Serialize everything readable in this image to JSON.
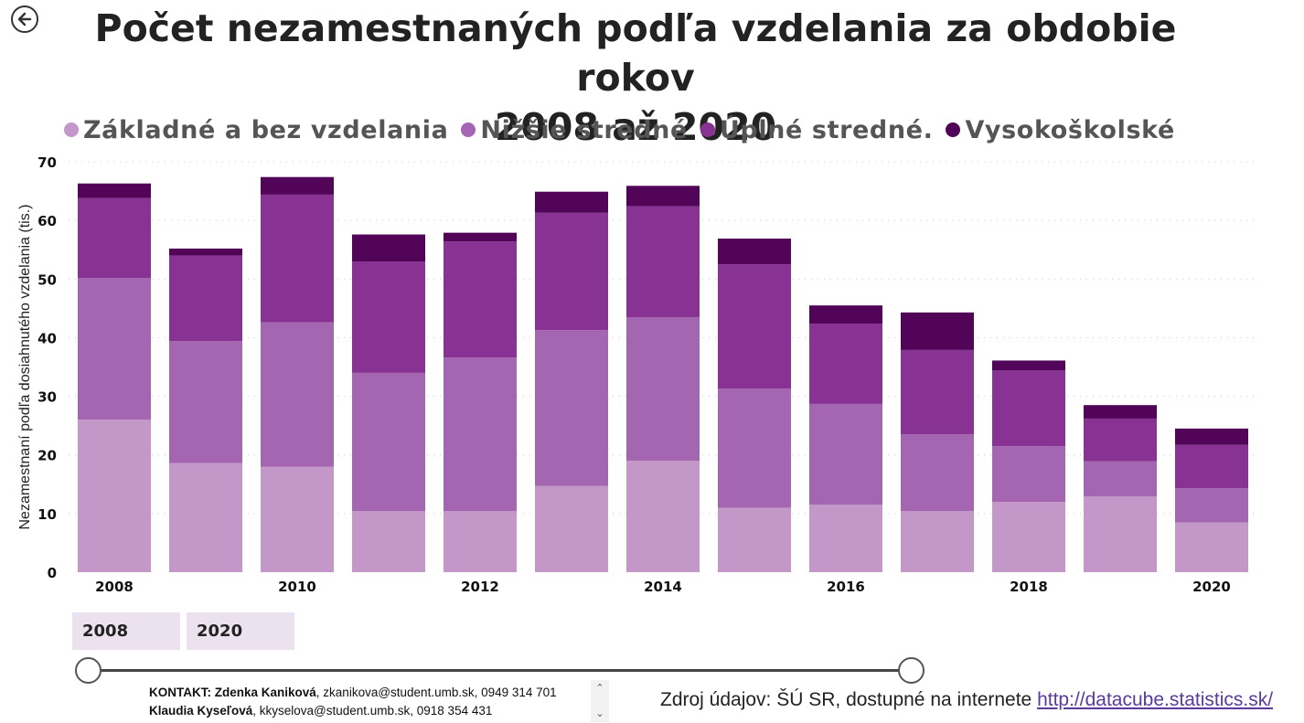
{
  "header": {
    "title_line1": "Počet nezamestnaných podľa vzdelania za obdobie rokov",
    "title_line2": "2008 až 2020",
    "back_icon": "back-arrow-icon"
  },
  "chart_data": {
    "type": "bar",
    "stacked": true,
    "categories": [
      "2008",
      "2009",
      "2010",
      "2011",
      "2012",
      "2013",
      "2014",
      "2015",
      "2016",
      "2017",
      "2018",
      "2019",
      "2020"
    ],
    "tick_labels": [
      "2008",
      "",
      "2010",
      "",
      "2012",
      "",
      "2014",
      "",
      "2016",
      "",
      "2018",
      "",
      "2020"
    ],
    "series": [
      {
        "name": "Základné a bez vzdelania",
        "color": "#c497c9",
        "values": [
          26,
          18.6,
          18,
          10.4,
          10.4,
          14.7,
          19,
          11,
          11.5,
          10.4,
          12,
          12.9,
          8.5
        ]
      },
      {
        "name": "Nižšie stredné",
        "color": "#a466b1",
        "values": [
          24.2,
          20.8,
          24.6,
          23.6,
          26.2,
          26.6,
          24.5,
          20.3,
          17.2,
          13.1,
          9.5,
          6,
          5.8
        ]
      },
      {
        "name": "Úplné stredné.",
        "color": "#883293",
        "values": [
          13.6,
          14.6,
          21.8,
          19,
          19.8,
          20,
          18.9,
          21.2,
          13.7,
          14.4,
          12.9,
          7.3,
          7.4
        ]
      },
      {
        "name": "Vysokoškolské",
        "color": "#520558",
        "values": [
          2.5,
          1.2,
          3,
          4.6,
          1.5,
          3.6,
          3.5,
          4.4,
          3.1,
          6.4,
          1.7,
          2.3,
          2.8
        ]
      }
    ],
    "ylabel": "Nezamestnaní podľa dosiahnutého vzdelania (tis.)",
    "ylim": [
      0,
      70
    ],
    "yticks": [
      0,
      10,
      20,
      30,
      40,
      50,
      60,
      70
    ],
    "grid": true,
    "legend_position": "top"
  },
  "slider": {
    "start_label": "2008",
    "end_label": "2020"
  },
  "footer": {
    "contact_prefix": "KONTAKT: ",
    "contact1_name": "Zdenka Kaniková",
    "contact1_details": ", zkanikova@student.umb.sk, 0949 314 701",
    "contact2_name": "Klaudia Kyseľová",
    "contact2_details": ", kkyselova@student.umb.sk, 0918 354 431",
    "scroll_up": "⌃",
    "scroll_down": "⌄",
    "source_text": "Zdroj údajov: ŠÚ SR, dostupné na internete ",
    "source_link": "http://datacube.statistics.sk/"
  }
}
